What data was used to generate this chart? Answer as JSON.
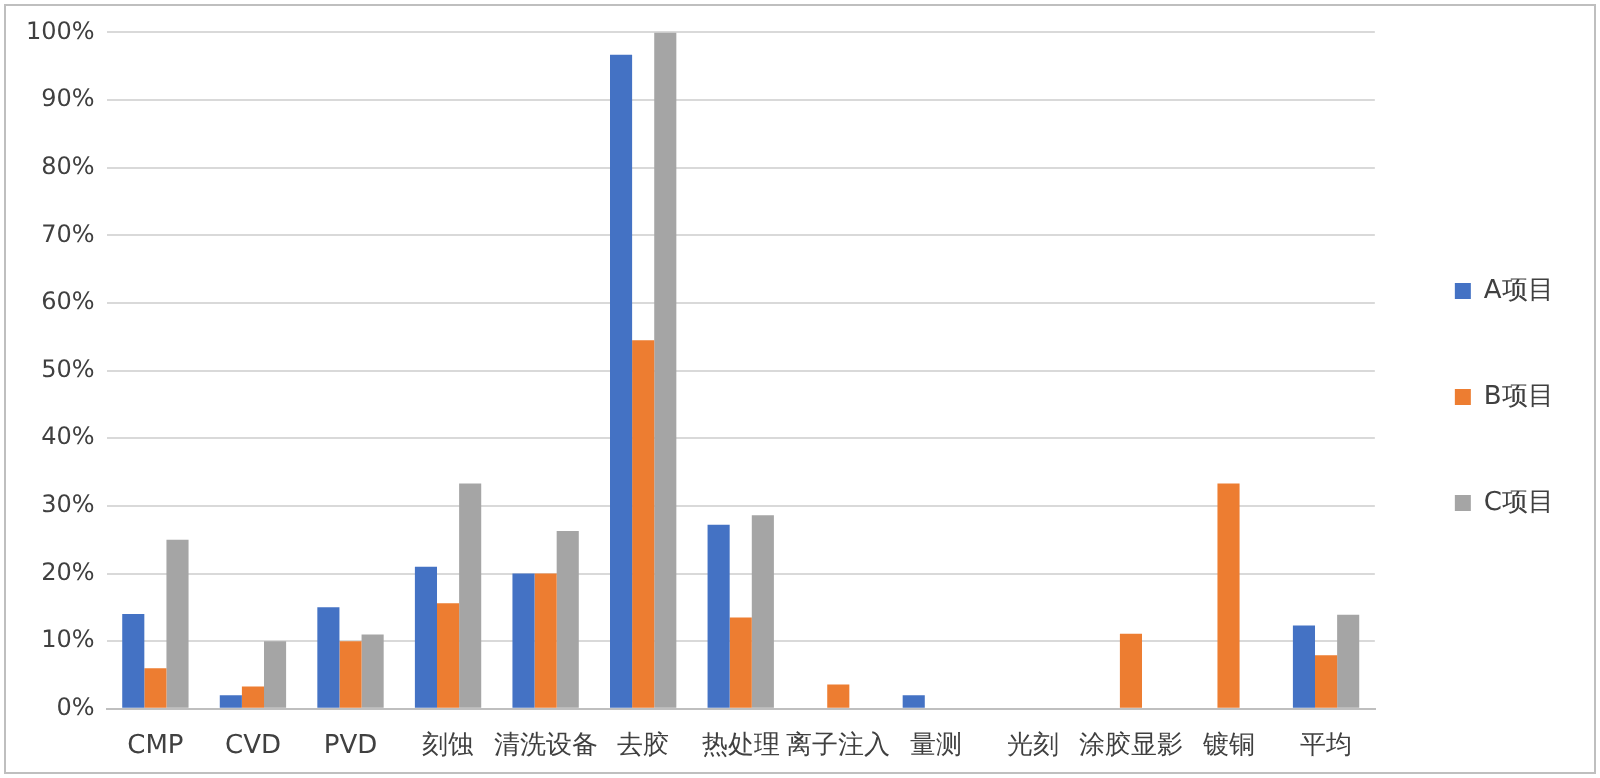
{
  "chart_data": {
    "type": "bar",
    "categories": [
      "CMP",
      "CVD",
      "PVD",
      "刻蚀",
      "清洗设备",
      "去胶",
      "热处理",
      "离子注入",
      "量测",
      "光刻",
      "涂胶显影",
      "镀铜",
      "平均"
    ],
    "series": [
      {
        "name": "A项目",
        "color": "#4472c4",
        "values": [
          14,
          2,
          15,
          21,
          20,
          96.7,
          27.2,
          0,
          2,
          0,
          0,
          0,
          12.3
        ]
      },
      {
        "name": "B项目",
        "color": "#ed7d31",
        "values": [
          6,
          3.3,
          10,
          15.6,
          20,
          54.5,
          13.5,
          3.6,
          0,
          0,
          11.1,
          33.3,
          7.9
        ]
      },
      {
        "name": "C项目",
        "color": "#a5a5a5",
        "values": [
          25,
          10,
          11,
          33.3,
          26.3,
          100,
          28.6,
          0,
          0,
          0,
          0,
          0,
          13.9
        ]
      }
    ],
    "ylim": [
      0,
      100
    ],
    "yticks": [
      {
        "value": 0,
        "label": "0%"
      },
      {
        "value": 10,
        "label": "10%"
      },
      {
        "value": 20,
        "label": "20%"
      },
      {
        "value": 30,
        "label": "30%"
      },
      {
        "value": 40,
        "label": "40%"
      },
      {
        "value": 50,
        "label": "50%"
      },
      {
        "value": 60,
        "label": "60%"
      },
      {
        "value": 70,
        "label": "70%"
      },
      {
        "value": 80,
        "label": "80%"
      },
      {
        "value": 90,
        "label": "90%"
      },
      {
        "value": 100,
        "label": "100%"
      }
    ],
    "grid": "y",
    "legend": "right"
  }
}
